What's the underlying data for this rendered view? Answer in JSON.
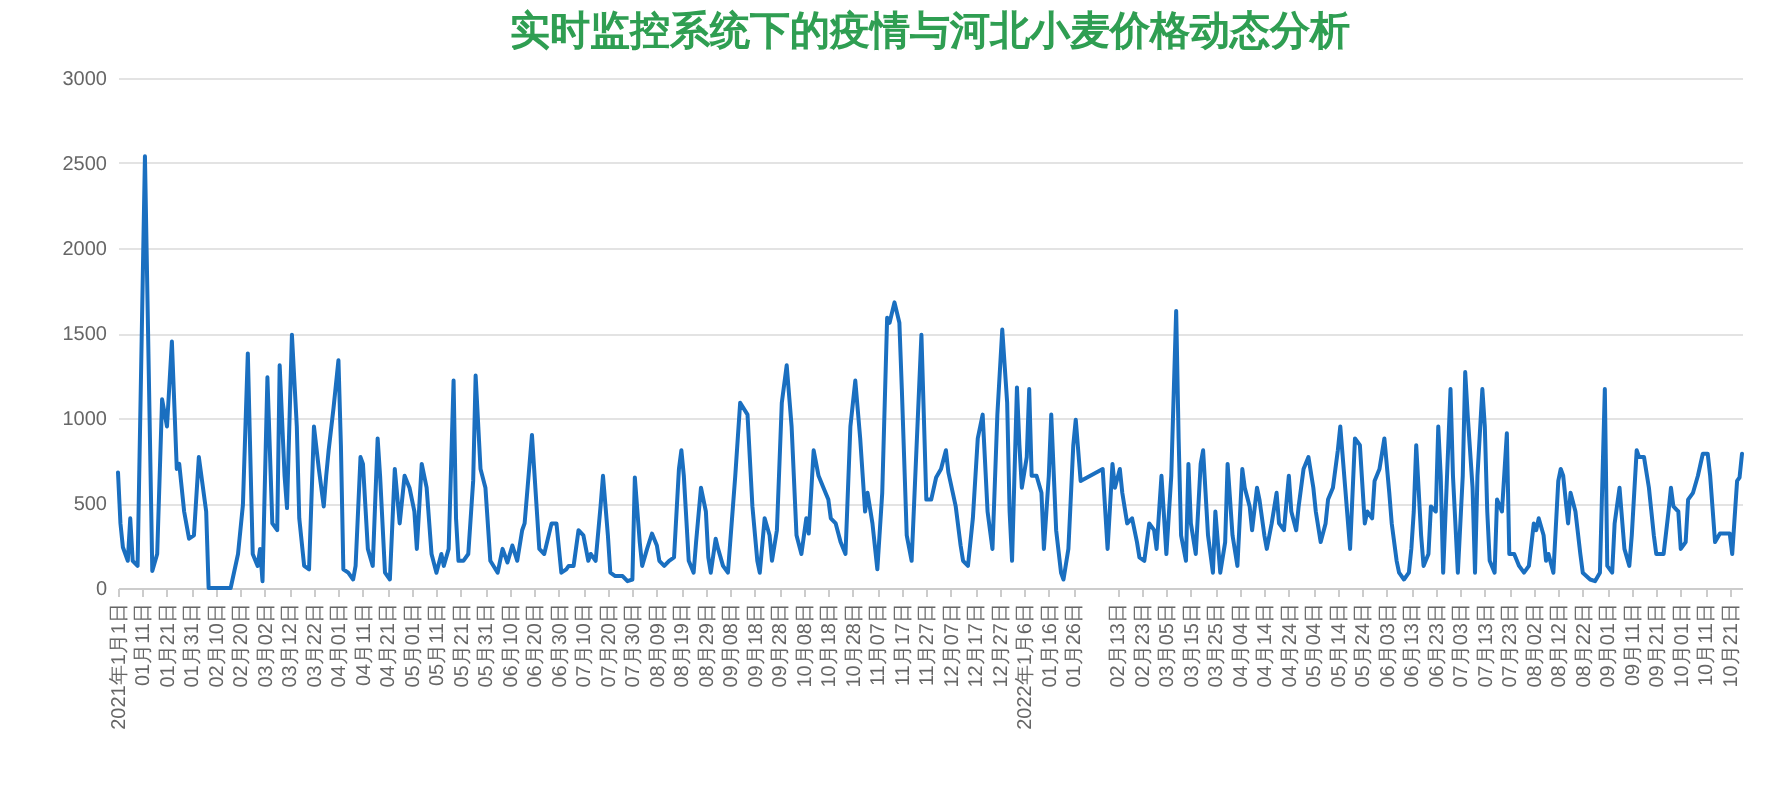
{
  "chart_data": {
    "type": "line",
    "title": "实时监控系统下的疫情与河北小麦价格动态分析",
    "x": [
      "2021-01-01",
      "2021-01-02",
      "2021-01-03",
      "2021-01-05",
      "2021-01-06",
      "2021-01-07",
      "2021-01-09",
      "2021-01-12",
      "2021-01-15",
      "2021-01-17",
      "2021-01-19",
      "2021-01-21",
      "2021-01-23",
      "2021-01-25",
      "2021-01-26",
      "2021-01-28",
      "2021-01-30",
      "2021-02-01",
      "2021-02-03",
      "2021-02-06",
      "2021-02-07",
      "2021-02-16",
      "2021-02-19",
      "2021-02-21",
      "2021-02-23",
      "2021-02-25",
      "2021-02-27",
      "2021-02-28",
      "2021-03-01",
      "2021-03-03",
      "2021-03-05",
      "2021-03-07",
      "2021-03-08",
      "2021-03-10",
      "2021-03-11",
      "2021-03-13",
      "2021-03-15",
      "2021-03-16",
      "2021-03-18",
      "2021-03-20",
      "2021-03-22",
      "2021-03-24",
      "2021-03-26",
      "2021-03-27",
      "2021-03-28",
      "2021-03-30",
      "2021-04-01",
      "2021-04-02",
      "2021-04-03",
      "2021-04-05",
      "2021-04-07",
      "2021-04-08",
      "2021-04-10",
      "2021-04-11",
      "2021-04-13",
      "2021-04-15",
      "2021-04-17",
      "2021-04-18",
      "2021-04-20",
      "2021-04-22",
      "2021-04-24",
      "2021-04-26",
      "2021-04-28",
      "2021-04-30",
      "2021-05-02",
      "2021-05-03",
      "2021-05-05",
      "2021-05-07",
      "2021-05-09",
      "2021-05-11",
      "2021-05-13",
      "2021-05-14",
      "2021-05-16",
      "2021-05-18",
      "2021-05-19",
      "2021-05-20",
      "2021-05-22",
      "2021-05-24",
      "2021-05-26",
      "2021-05-27",
      "2021-05-29",
      "2021-05-31",
      "2021-06-02",
      "2021-06-05",
      "2021-06-07",
      "2021-06-09",
      "2021-06-11",
      "2021-06-13",
      "2021-06-15",
      "2021-06-16",
      "2021-06-19",
      "2021-06-22",
      "2021-06-24",
      "2021-06-27",
      "2021-06-29",
      "2021-07-01",
      "2021-07-03",
      "2021-07-04",
      "2021-07-06",
      "2021-07-08",
      "2021-07-10",
      "2021-07-12",
      "2021-07-13",
      "2021-07-15",
      "2021-07-17",
      "2021-07-18",
      "2021-07-20",
      "2021-07-21",
      "2021-07-23",
      "2021-07-26",
      "2021-07-28",
      "2021-07-30",
      "2021-07-31",
      "2021-08-02",
      "2021-08-03",
      "2021-08-05",
      "2021-08-07",
      "2021-08-09",
      "2021-08-10",
      "2021-08-12",
      "2021-08-14",
      "2021-08-16",
      "2021-08-18",
      "2021-08-19",
      "2021-08-20",
      "2021-08-22",
      "2021-08-24",
      "2021-08-25",
      "2021-08-27",
      "2021-08-29",
      "2021-08-30",
      "2021-08-31",
      "2021-09-02",
      "2021-09-03",
      "2021-09-05",
      "2021-09-07",
      "2021-09-10",
      "2021-09-12",
      "2021-09-15",
      "2021-09-17",
      "2021-09-19",
      "2021-09-20",
      "2021-09-22",
      "2021-09-24",
      "2021-09-25",
      "2021-09-27",
      "2021-09-29",
      "2021-10-01",
      "2021-10-03",
      "2021-10-05",
      "2021-10-07",
      "2021-10-09",
      "2021-10-10",
      "2021-10-12",
      "2021-10-14",
      "2021-10-16",
      "2021-10-18",
      "2021-10-19",
      "2021-10-21",
      "2021-10-23",
      "2021-10-25",
      "2021-10-27",
      "2021-10-29",
      "2021-10-31",
      "2021-11-02",
      "2021-11-03",
      "2021-11-05",
      "2021-11-07",
      "2021-11-09",
      "2021-11-11",
      "2021-11-12",
      "2021-11-14",
      "2021-11-16",
      "2021-11-17",
      "2021-11-19",
      "2021-11-21",
      "2021-11-25",
      "2021-11-27",
      "2021-11-29",
      "2021-12-01",
      "2021-12-03",
      "2021-12-05",
      "2021-12-06",
      "2021-12-09",
      "2021-12-11",
      "2021-12-12",
      "2021-12-14",
      "2021-12-16",
      "2021-12-18",
      "2021-12-20",
      "2021-12-22",
      "2021-12-24",
      "2021-12-26",
      "2021-12-28",
      "2021-12-30",
      "2021-12-31",
      "2022-01-01",
      "2022-01-03",
      "2022-01-04",
      "2022-01-05",
      "2022-01-07",
      "2022-01-08",
      "2022-01-09",
      "2022-01-11",
      "2022-01-13",
      "2022-01-14",
      "2022-01-16",
      "2022-01-17",
      "2022-01-19",
      "2022-01-21",
      "2022-01-22",
      "2022-01-24",
      "2022-01-26",
      "2022-01-27",
      "2022-01-29",
      "2022-02-07",
      "2022-02-09",
      "2022-02-11",
      "2022-02-12",
      "2022-02-14",
      "2022-02-15",
      "2022-02-17",
      "2022-02-19",
      "2022-02-21",
      "2022-02-22",
      "2022-02-24",
      "2022-02-26",
      "2022-02-28",
      "2022-03-01",
      "2022-03-03",
      "2022-03-05",
      "2022-03-07",
      "2022-03-09",
      "2022-03-10",
      "2022-03-11",
      "2022-03-13",
      "2022-03-14",
      "2022-03-15",
      "2022-03-17",
      "2022-03-19",
      "2022-03-20",
      "2022-03-22",
      "2022-03-24",
      "2022-03-25",
      "2022-03-27",
      "2022-03-29",
      "2022-03-30",
      "2022-04-01",
      "2022-04-03",
      "2022-04-05",
      "2022-04-06",
      "2022-04-08",
      "2022-04-09",
      "2022-04-11",
      "2022-04-12",
      "2022-04-14",
      "2022-04-15",
      "2022-04-17",
      "2022-04-19",
      "2022-04-20",
      "2022-04-22",
      "2022-04-24",
      "2022-04-25",
      "2022-04-27",
      "2022-04-28",
      "2022-04-30",
      "2022-05-02",
      "2022-05-04",
      "2022-05-05",
      "2022-05-07",
      "2022-05-09",
      "2022-05-10",
      "2022-05-12",
      "2022-05-14",
      "2022-05-15",
      "2022-05-17",
      "2022-05-19",
      "2022-05-21",
      "2022-05-23",
      "2022-05-25",
      "2022-05-26",
      "2022-05-28",
      "2022-05-29",
      "2022-05-31",
      "2022-06-02",
      "2022-06-04",
      "2022-06-05",
      "2022-06-07",
      "2022-06-08",
      "2022-06-10",
      "2022-06-12",
      "2022-06-13",
      "2022-06-14",
      "2022-06-15",
      "2022-06-17",
      "2022-06-18",
      "2022-06-20",
      "2022-06-21",
      "2022-06-23",
      "2022-06-24",
      "2022-06-25",
      "2022-06-26",
      "2022-06-29",
      "2022-06-30",
      "2022-07-02",
      "2022-07-04",
      "2022-07-05",
      "2022-07-06",
      "2022-07-08",
      "2022-07-09",
      "2022-07-10",
      "2022-07-12",
      "2022-07-13",
      "2022-07-14",
      "2022-07-15",
      "2022-07-17",
      "2022-07-18",
      "2022-07-20",
      "2022-07-22",
      "2022-07-23",
      "2022-07-25",
      "2022-07-27",
      "2022-07-29",
      "2022-07-31",
      "2022-08-02",
      "2022-08-03",
      "2022-08-04",
      "2022-08-06",
      "2022-08-07",
      "2022-08-08",
      "2022-08-10",
      "2022-08-12",
      "2022-08-13",
      "2022-08-14",
      "2022-08-16",
      "2022-08-17",
      "2022-08-19",
      "2022-08-21",
      "2022-08-22",
      "2022-08-25",
      "2022-08-27",
      "2022-08-29",
      "2022-08-31",
      "2022-09-01",
      "2022-09-03",
      "2022-09-04",
      "2022-09-06",
      "2022-09-08",
      "2022-09-10",
      "2022-09-11",
      "2022-09-13",
      "2022-09-14",
      "2022-09-16",
      "2022-09-18",
      "2022-09-20",
      "2022-09-21",
      "2022-09-24",
      "2022-09-26",
      "2022-09-27",
      "2022-09-28",
      "2022-09-30",
      "2022-10-01",
      "2022-10-03",
      "2022-10-04",
      "2022-10-06",
      "2022-10-08",
      "2022-10-10",
      "2022-10-12",
      "2022-10-13",
      "2022-10-15",
      "2022-10-17",
      "2022-10-19",
      "2022-10-21",
      "2022-10-22",
      "2022-10-24",
      "2022-10-25",
      "2022-10-26"
    ],
    "series": [
      {
        "color": "#1a6fc0",
        "values": [
          680,
          380,
          240,
          160,
          410,
          160,
          130,
          2540,
          100,
          200,
          1110,
          950,
          1450,
          700,
          730,
          450,
          290,
          310,
          770,
          450,
          0,
          0,
          200,
          490,
          1380,
          200,
          130,
          230,
          40,
          1240,
          380,
          340,
          1310,
          660,
          470,
          1490,
          950,
          410,
          130,
          110,
          950,
          700,
          480,
          660,
          810,
          1060,
          1340,
          840,
          110,
          90,
          50,
          130,
          770,
          730,
          230,
          130,
          880,
          660,
          90,
          50,
          700,
          380,
          660,
          590,
          450,
          230,
          730,
          590,
          200,
          90,
          200,
          130,
          230,
          1220,
          410,
          160,
          160,
          200,
          630,
          1250,
          700,
          590,
          160,
          90,
          230,
          150,
          250,
          160,
          340,
          380,
          900,
          230,
          200,
          380,
          380,
          90,
          110,
          130,
          130,
          340,
          310,
          160,
          200,
          160,
          480,
          660,
          310,
          90,
          70,
          70,
          40,
          50,
          650,
          270,
          130,
          230,
          320,
          250,
          160,
          130,
          160,
          180,
          700,
          810,
          660,
          160,
          90,
          270,
          590,
          450,
          180,
          90,
          290,
          230,
          130,
          90,
          660,
          1090,
          1020,
          480,
          160,
          90,
          410,
          310,
          160,
          340,
          1090,
          1310,
          950,
          310,
          200,
          410,
          320,
          810,
          660,
          590,
          520,
          410,
          380,
          270,
          200,
          950,
          1220,
          880,
          450,
          560,
          380,
          110,
          560,
          1590,
          1560,
          1680,
          1560,
          1170,
          310,
          160,
          1490,
          520,
          520,
          650,
          700,
          810,
          680,
          480,
          250,
          160,
          130,
          410,
          880,
          1020,
          450,
          230,
          1020,
          1520,
          1090,
          450,
          160,
          1180,
          840,
          590,
          770,
          1170,
          660,
          660,
          560,
          230,
          660,
          1020,
          340,
          90,
          50,
          230,
          840,
          990,
          630,
          700,
          230,
          730,
          590,
          700,
          560,
          380,
          410,
          270,
          180,
          160,
          380,
          340,
          230,
          660,
          200,
          660,
          1630,
          880,
          310,
          160,
          730,
          380,
          200,
          730,
          810,
          310,
          90,
          450,
          90,
          270,
          730,
          310,
          130,
          700,
          590,
          480,
          340,
          590,
          520,
          310,
          230,
          380,
          560,
          380,
          340,
          660,
          450,
          340,
          480,
          700,
          770,
          590,
          450,
          270,
          380,
          520,
          590,
          810,
          950,
          590,
          230,
          880,
          840,
          380,
          450,
          410,
          630,
          700,
          880,
          560,
          380,
          160,
          90,
          50,
          90,
          230,
          450,
          840,
          310,
          130,
          200,
          480,
          450,
          950,
          660,
          90,
          1170,
          660,
          90,
          660,
          1270,
          1020,
          590,
          90,
          660,
          1170,
          950,
          450,
          160,
          90,
          520,
          450,
          910,
          200,
          200,
          130,
          90,
          130,
          380,
          340,
          410,
          310,
          160,
          200,
          90,
          630,
          700,
          660,
          380,
          560,
          450,
          200,
          90,
          50,
          40,
          90,
          1170,
          130,
          90,
          380,
          590,
          230,
          130,
          310,
          810,
          770,
          770,
          590,
          310,
          200,
          200,
          450,
          590,
          480,
          450,
          230,
          270,
          520,
          560,
          660,
          790,
          790,
          660,
          270,
          320,
          320,
          320,
          200,
          630,
          650,
          790
        ]
      }
    ],
    "xlim": [
      "2021-01-01",
      "2022-10-26"
    ],
    "xticks": [
      {
        "value": "2021-01-01",
        "label": "2021年1月1日"
      },
      {
        "value": "2021-01-11",
        "label": "01月11日"
      },
      {
        "value": "2021-01-21",
        "label": "01月21日"
      },
      {
        "value": "2021-01-31",
        "label": "01月31日"
      },
      {
        "value": "2021-02-10",
        "label": "02月10日"
      },
      {
        "value": "2021-02-20",
        "label": "02月20日"
      },
      {
        "value": "2021-03-02",
        "label": "03月02日"
      },
      {
        "value": "2021-03-12",
        "label": "03月12日"
      },
      {
        "value": "2021-03-22",
        "label": "03月22日"
      },
      {
        "value": "2021-04-01",
        "label": "04月01日"
      },
      {
        "value": "2021-04-11",
        "label": "04月11日"
      },
      {
        "value": "2021-04-21",
        "label": "04月21日"
      },
      {
        "value": "2021-05-01",
        "label": "05月01日"
      },
      {
        "value": "2021-05-11",
        "label": "05月11日"
      },
      {
        "value": "2021-05-21",
        "label": "05月21日"
      },
      {
        "value": "2021-05-31",
        "label": "05月31日"
      },
      {
        "value": "2021-06-10",
        "label": "06月10日"
      },
      {
        "value": "2021-06-20",
        "label": "06月20日"
      },
      {
        "value": "2021-06-30",
        "label": "06月30日"
      },
      {
        "value": "2021-07-10",
        "label": "07月10日"
      },
      {
        "value": "2021-07-20",
        "label": "07月20日"
      },
      {
        "value": "2021-07-30",
        "label": "07月30日"
      },
      {
        "value": "2021-08-09",
        "label": "08月09日"
      },
      {
        "value": "2021-08-19",
        "label": "08月19日"
      },
      {
        "value": "2021-08-29",
        "label": "08月29日"
      },
      {
        "value": "2021-09-08",
        "label": "09月08日"
      },
      {
        "value": "2021-09-18",
        "label": "09月18日"
      },
      {
        "value": "2021-09-28",
        "label": "09月28日"
      },
      {
        "value": "2021-10-08",
        "label": "10月08日"
      },
      {
        "value": "2021-10-18",
        "label": "10月18日"
      },
      {
        "value": "2021-10-28",
        "label": "10月28日"
      },
      {
        "value": "2021-11-07",
        "label": "11月07日"
      },
      {
        "value": "2021-11-17",
        "label": "11月17日"
      },
      {
        "value": "2021-11-27",
        "label": "11月27日"
      },
      {
        "value": "2021-12-07",
        "label": "12月07日"
      },
      {
        "value": "2021-12-17",
        "label": "12月17日"
      },
      {
        "value": "2021-12-27",
        "label": "12月27日"
      },
      {
        "value": "2022-01-06",
        "label": "2022年1月6日"
      },
      {
        "value": "2022-01-16",
        "label": "01月16日"
      },
      {
        "value": "2022-01-26",
        "label": "01月26日"
      },
      {
        "value": "2022-02-13",
        "label": "02月13日"
      },
      {
        "value": "2022-02-23",
        "label": "02月23日"
      },
      {
        "value": "2022-03-05",
        "label": "03月05日"
      },
      {
        "value": "2022-03-15",
        "label": "03月15日"
      },
      {
        "value": "2022-03-25",
        "label": "03月25日"
      },
      {
        "value": "2022-04-04",
        "label": "04月04日"
      },
      {
        "value": "2022-04-14",
        "label": "04月14日"
      },
      {
        "value": "2022-04-24",
        "label": "04月24日"
      },
      {
        "value": "2022-05-04",
        "label": "05月04日"
      },
      {
        "value": "2022-05-14",
        "label": "05月14日"
      },
      {
        "value": "2022-05-24",
        "label": "05月24日"
      },
      {
        "value": "2022-06-03",
        "label": "06月03日"
      },
      {
        "value": "2022-06-13",
        "label": "06月13日"
      },
      {
        "value": "2022-06-23",
        "label": "06月23日"
      },
      {
        "value": "2022-07-03",
        "label": "07月03日"
      },
      {
        "value": "2022-07-13",
        "label": "07月13日"
      },
      {
        "value": "2022-07-23",
        "label": "07月23日"
      },
      {
        "value": "2022-08-02",
        "label": "08月02日"
      },
      {
        "value": "2022-08-12",
        "label": "08月12日"
      },
      {
        "value": "2022-08-22",
        "label": "08月22日"
      },
      {
        "value": "2022-09-01",
        "label": "09月01日"
      },
      {
        "value": "2022-09-11",
        "label": "09月11日"
      },
      {
        "value": "2022-09-21",
        "label": "09月21日"
      },
      {
        "value": "2022-10-01",
        "label": "10月01日"
      },
      {
        "value": "2022-10-11",
        "label": "10月11日"
      },
      {
        "value": "2022-10-21",
        "label": "10月21日"
      }
    ],
    "ylim": [
      0,
      3000
    ],
    "yticks": [
      0,
      500,
      1000,
      1500,
      2000,
      2500,
      3000
    ],
    "grid": "y",
    "line_style": "solid"
  }
}
